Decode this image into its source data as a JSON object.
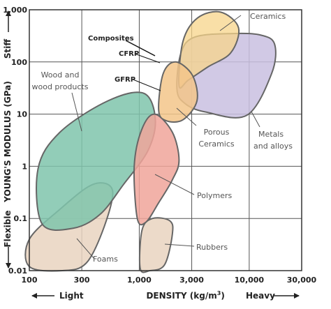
{
  "chart_data": {
    "type": "scatter",
    "xlabel": "DENSITY (kg/m",
    "xlabel_sup": "3",
    "xlabel_close": ")",
    "ylabel": "YOUNG'S MODULUS (GPa)",
    "x_scale": "log",
    "y_scale": "log",
    "xlim": [
      100,
      30000
    ],
    "ylim": [
      0.01,
      1000
    ],
    "x_ticks": [
      100,
      300,
      1000,
      3000,
      10000,
      30000
    ],
    "x_tick_labels": [
      "100",
      "300",
      "1,000",
      "3,000",
      "10,000",
      "30,000"
    ],
    "y_ticks": [
      0.01,
      0.1,
      1,
      10,
      100,
      1000
    ],
    "y_tick_labels": [
      "0.01",
      "0.1",
      "1",
      "10",
      "100",
      "1,000"
    ],
    "grid": true,
    "x_low_label": "Light",
    "x_high_label": "Heavy",
    "y_low_label": "Flexible",
    "y_high_label": "Stiff",
    "colors": {
      "ceramics": "#f7d48a",
      "metals": "#c9bfe0",
      "porous_ceramics": "#f3c58a",
      "composites": "#8f2b7a",
      "wood": "#7fc4ac",
      "polymers": "#f0a49a",
      "foams": "#e9d3bf",
      "rubbers": "#e9d3bf",
      "outline": "#666666",
      "callout": "#555555"
    },
    "regions": [
      {
        "name": "Ceramics",
        "density": [
          2300,
          8000
        ],
        "modulus": [
          30,
          900
        ]
      },
      {
        "name": "Metals and alloys",
        "density": [
          2200,
          18000
        ],
        "modulus": [
          9,
          400
        ]
      },
      {
        "name": "Porous Ceramics",
        "density": [
          1500,
          3300
        ],
        "modulus": [
          7,
          100
        ]
      },
      {
        "name": "Composites",
        "density": [
          1400,
          2000
        ],
        "modulus": [
          8,
          200
        ]
      },
      {
        "name": "CFRP",
        "density": [
          1500,
          1700
        ],
        "modulus": [
          70,
          200
        ]
      },
      {
        "name": "GFRP",
        "density": [
          1500,
          2000
        ],
        "modulus": [
          10,
          40
        ]
      },
      {
        "name": "Wood and wood products",
        "density": [
          120,
          1400
        ],
        "modulus": [
          0.07,
          30
        ]
      },
      {
        "name": "Polymers",
        "density": [
          900,
          2300
        ],
        "modulus": [
          0.08,
          10
        ]
      },
      {
        "name": "Foams",
        "density": [
          100,
          600
        ],
        "modulus": [
          0.01,
          0.6
        ]
      },
      {
        "name": "Rubbers",
        "density": [
          1000,
          2100
        ],
        "modulus": [
          0.01,
          0.1
        ]
      }
    ],
    "labels": {
      "ceramics": "Ceramics",
      "composites": "Composites",
      "cfrp": "CFRP",
      "gfrp": "GFRP",
      "wood_line1": "Wood and",
      "wood_line2": "wood products",
      "porous_line1": "Porous",
      "porous_line2": "Ceramics",
      "metals_line1": "Metals",
      "metals_line2": "and alloys",
      "polymers": "Polymers",
      "rubbers": "Rubbers",
      "foams": "Foams"
    }
  }
}
